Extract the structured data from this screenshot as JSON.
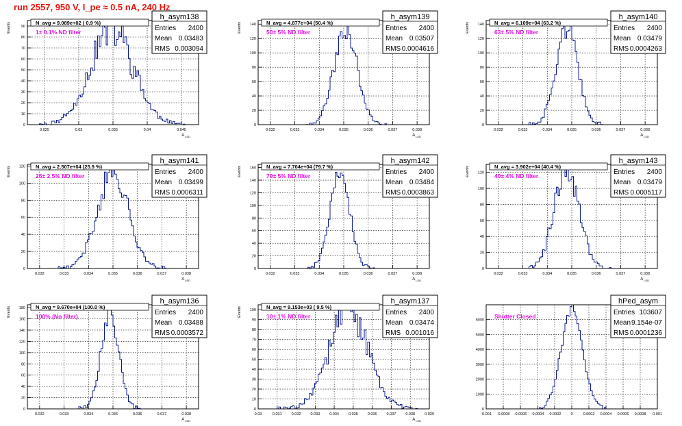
{
  "page": {
    "title": "run 2557,   950 V, I_pe ≈ 0.5 nA, 240 Hz",
    "colors": {
      "title": "#e8140c",
      "annotation": "#e010e0",
      "histogram": "#0a1a8c",
      "grid": "#000000"
    }
  },
  "chart_data": [
    {
      "type": "histogram",
      "name": "h_asym138",
      "stats": {
        "entries_label": "Entries",
        "entries": "2400",
        "mean_label": "Mean",
        "mean": "0.03483",
        "rms_label": "RMS",
        "rms": "0.003094"
      },
      "navg": "N_avg = 9.089e+02 ( 0.9 %)",
      "filter": "1± 0.1% ND filter",
      "xlim": [
        0.0225,
        0.0475
      ],
      "ylim": [
        0,
        95
      ],
      "xticks": [
        "0.025",
        "0.03",
        "0.035",
        "0.04",
        "0.045"
      ],
      "yticks": [
        "0",
        "10",
        "20",
        "30",
        "40",
        "50",
        "60",
        "70",
        "80",
        "90"
      ],
      "xlabel": "A",
      "xlabel_sub": "LED",
      "ylabel": "Events",
      "shape": {
        "mean": 0.03483,
        "sigma": 0.0031,
        "peak": 88,
        "nbins": 100,
        "noise": 0.22,
        "seed": 11
      }
    },
    {
      "type": "histogram",
      "name": "h_asym139",
      "stats": {
        "entries_label": "Entries",
        "entries": "2400",
        "mean_label": "Mean",
        "mean": "0.03507",
        "rms_label": "RMS",
        "rms": "0.0004616"
      },
      "navg": "N_avg = 4.877e+04 (50.4 %)",
      "filter": "50± 5% ND filter",
      "xlim": [
        0.0315,
        0.0385
      ],
      "ylim": [
        0,
        145
      ],
      "xticks": [
        "0.032",
        "0.033",
        "0.034",
        "0.035",
        "0.036",
        "0.037",
        "0.038"
      ],
      "yticks": [
        "0",
        "20",
        "40",
        "60",
        "80",
        "100",
        "120",
        "140"
      ],
      "xlabel": "A",
      "xlabel_sub": "LED",
      "ylabel": "Events",
      "shape": {
        "mean": 0.03507,
        "sigma": 0.00046,
        "peak": 138,
        "nbins": 100,
        "noise": 0.14,
        "seed": 23
      }
    },
    {
      "type": "histogram",
      "name": "h_asym140",
      "stats": {
        "entries_label": "Entries",
        "entries": "2400",
        "mean_label": "Mean",
        "mean": "0.03479",
        "rms_label": "RMS",
        "rms": "0.0004263"
      },
      "navg": "N_avg = 6.109e+04 (63.2 %)",
      "filter": "63± 5% ND filter",
      "xlim": [
        0.0315,
        0.0385
      ],
      "ylim": [
        0,
        145
      ],
      "xticks": [
        "0.032",
        "0.033",
        "0.034",
        "0.035",
        "0.036",
        "0.037",
        "0.038"
      ],
      "yticks": [
        "0",
        "20",
        "40",
        "60",
        "80",
        "100",
        "120",
        "140"
      ],
      "xlabel": "A",
      "xlabel_sub": "LED",
      "ylabel": "Events",
      "shape": {
        "mean": 0.03479,
        "sigma": 0.00043,
        "peak": 140,
        "nbins": 100,
        "noise": 0.14,
        "seed": 37
      }
    },
    {
      "type": "histogram",
      "name": "h_asym141",
      "stats": {
        "entries_label": "Entries",
        "entries": "2400",
        "mean_label": "Mean",
        "mean": "0.03499",
        "rms_label": "RMS",
        "rms": "0.0006311"
      },
      "navg": "N_avg = 2.507e+04 (25.9 %)",
      "filter": "25± 2.5% ND filter",
      "xlim": [
        0.0315,
        0.0385
      ],
      "ylim": [
        0,
        122
      ],
      "xticks": [
        "0.032",
        "0.033",
        "0.034",
        "0.035",
        "0.036",
        "0.037",
        "0.038"
      ],
      "yticks": [
        "0",
        "20",
        "40",
        "60",
        "80",
        "100",
        "120"
      ],
      "xlabel": "A",
      "xlabel_sub": "LED",
      "ylabel": "Events",
      "shape": {
        "mean": 0.03499,
        "sigma": 0.00063,
        "peak": 114,
        "nbins": 100,
        "noise": 0.15,
        "seed": 41
      }
    },
    {
      "type": "histogram",
      "name": "h_asym142",
      "stats": {
        "entries_label": "Entries",
        "entries": "2400",
        "mean_label": "Mean",
        "mean": "0.03484",
        "rms_label": "RMS",
        "rms": "0.0003863"
      },
      "navg": "N_avg = 7.704e+04 (79.7 %)",
      "filter": "79± 5% ND filter",
      "xlim": [
        0.0315,
        0.0385
      ],
      "ylim": [
        0,
        165
      ],
      "xticks": [
        "0.032",
        "0.033",
        "0.034",
        "0.035",
        "0.036",
        "0.037",
        "0.038"
      ],
      "yticks": [
        "0",
        "20",
        "40",
        "60",
        "80",
        "100",
        "120",
        "140",
        "160"
      ],
      "xlabel": "A",
      "xlabel_sub": "LED",
      "ylabel": "Events",
      "shape": {
        "mean": 0.03484,
        "sigma": 0.00039,
        "peak": 158,
        "nbins": 100,
        "noise": 0.12,
        "seed": 53
      }
    },
    {
      "type": "histogram",
      "name": "h_asym143",
      "stats": {
        "entries_label": "Entries",
        "entries": "2400",
        "mean_label": "Mean",
        "mean": "0.03479",
        "rms_label": "RMS",
        "rms": "0.0005117"
      },
      "navg": "N_avg = 3.902e+04 (40.4 %)",
      "filter": "40± 4% ND filter",
      "xlim": [
        0.0315,
        0.0385
      ],
      "ylim": [
        0,
        130
      ],
      "xticks": [
        "0.032",
        "0.033",
        "0.034",
        "0.035",
        "0.036",
        "0.037",
        "0.038"
      ],
      "yticks": [
        "0",
        "20",
        "40",
        "60",
        "80",
        "100",
        "120"
      ],
      "xlabel": "A",
      "xlabel_sub": "LED",
      "ylabel": "Events",
      "shape": {
        "mean": 0.03479,
        "sigma": 0.00051,
        "peak": 122,
        "nbins": 100,
        "noise": 0.15,
        "seed": 67
      }
    },
    {
      "type": "histogram",
      "name": "h_asym136",
      "stats": {
        "entries_label": "Entries",
        "entries": "2400",
        "mean_label": "Mean",
        "mean": "0.03488",
        "rms_label": "RMS",
        "rms": "0.0003572"
      },
      "navg": "N_avg = 9.670e+04 (100.0 %)",
      "filter": "100% (No filter)",
      "xlim": [
        0.0315,
        0.0385
      ],
      "ylim": [
        0,
        185
      ],
      "xticks": [
        "0.032",
        "0.033",
        "0.034",
        "0.035",
        "0.036",
        "0.037",
        "0.038"
      ],
      "yticks": [
        "0",
        "20",
        "40",
        "60",
        "80",
        "100",
        "120",
        "140",
        "160",
        "180"
      ],
      "xlabel": "A",
      "xlabel_sub": "LED",
      "ylabel": "Events",
      "shape": {
        "mean": 0.03488,
        "sigma": 0.00036,
        "peak": 172,
        "nbins": 100,
        "noise": 0.12,
        "seed": 79
      }
    },
    {
      "type": "histogram",
      "name": "h_asym137",
      "stats": {
        "entries_label": "Entries",
        "entries": "2400",
        "mean_label": "Mean",
        "mean": "0.03474",
        "rms_label": "RMS",
        "rms": "0.001016"
      },
      "navg": "N_avg = 9.153e+03 ( 9.5 %)",
      "filter": "10± 1% ND filter",
      "xlim": [
        0.03,
        0.039
      ],
      "ylim": [
        0,
        105
      ],
      "xticks": [
        "0.03",
        "0.031",
        "0.032",
        "0.033",
        "0.034",
        "0.035",
        "0.036",
        "0.037",
        "0.038",
        "0.039"
      ],
      "yticks": [
        "0",
        "10",
        "20",
        "30",
        "40",
        "50",
        "60",
        "70",
        "80",
        "90",
        "100"
      ],
      "xlabel": "A",
      "xlabel_sub": "LED",
      "ylabel": "Events",
      "shape": {
        "mean": 0.03474,
        "sigma": 0.00102,
        "peak": 98,
        "nbins": 100,
        "noise": 0.2,
        "seed": 83
      }
    },
    {
      "type": "histogram",
      "name": "hPed_asym",
      "stats": {
        "entries_label": "Entries",
        "entries": "103607",
        "mean_label": "Mean",
        "mean": "9.154e-07",
        "rms_label": "RMS",
        "rms": "0.0001236"
      },
      "navg": "",
      "filter": "Shutter Closed",
      "xlim": [
        -0.001,
        0.001
      ],
      "ylim": [
        0,
        7000
      ],
      "xticks": [
        "-0.001",
        "-0.0008",
        "-0.0006",
        "-0.0004",
        "-0.0002",
        "0",
        "0.0002",
        "0.0004",
        "0.0006",
        "0.0008",
        "0.001"
      ],
      "yticks": [
        "0",
        "1000",
        "2000",
        "3000",
        "4000",
        "5000",
        "6000"
      ],
      "xlabel": "",
      "xlabel_sub": "",
      "ylabel": "",
      "shape": {
        "mean": 9e-07,
        "sigma": 0.000124,
        "peak": 6700,
        "nbins": 100,
        "noise": 0.03,
        "seed": 97
      }
    }
  ]
}
